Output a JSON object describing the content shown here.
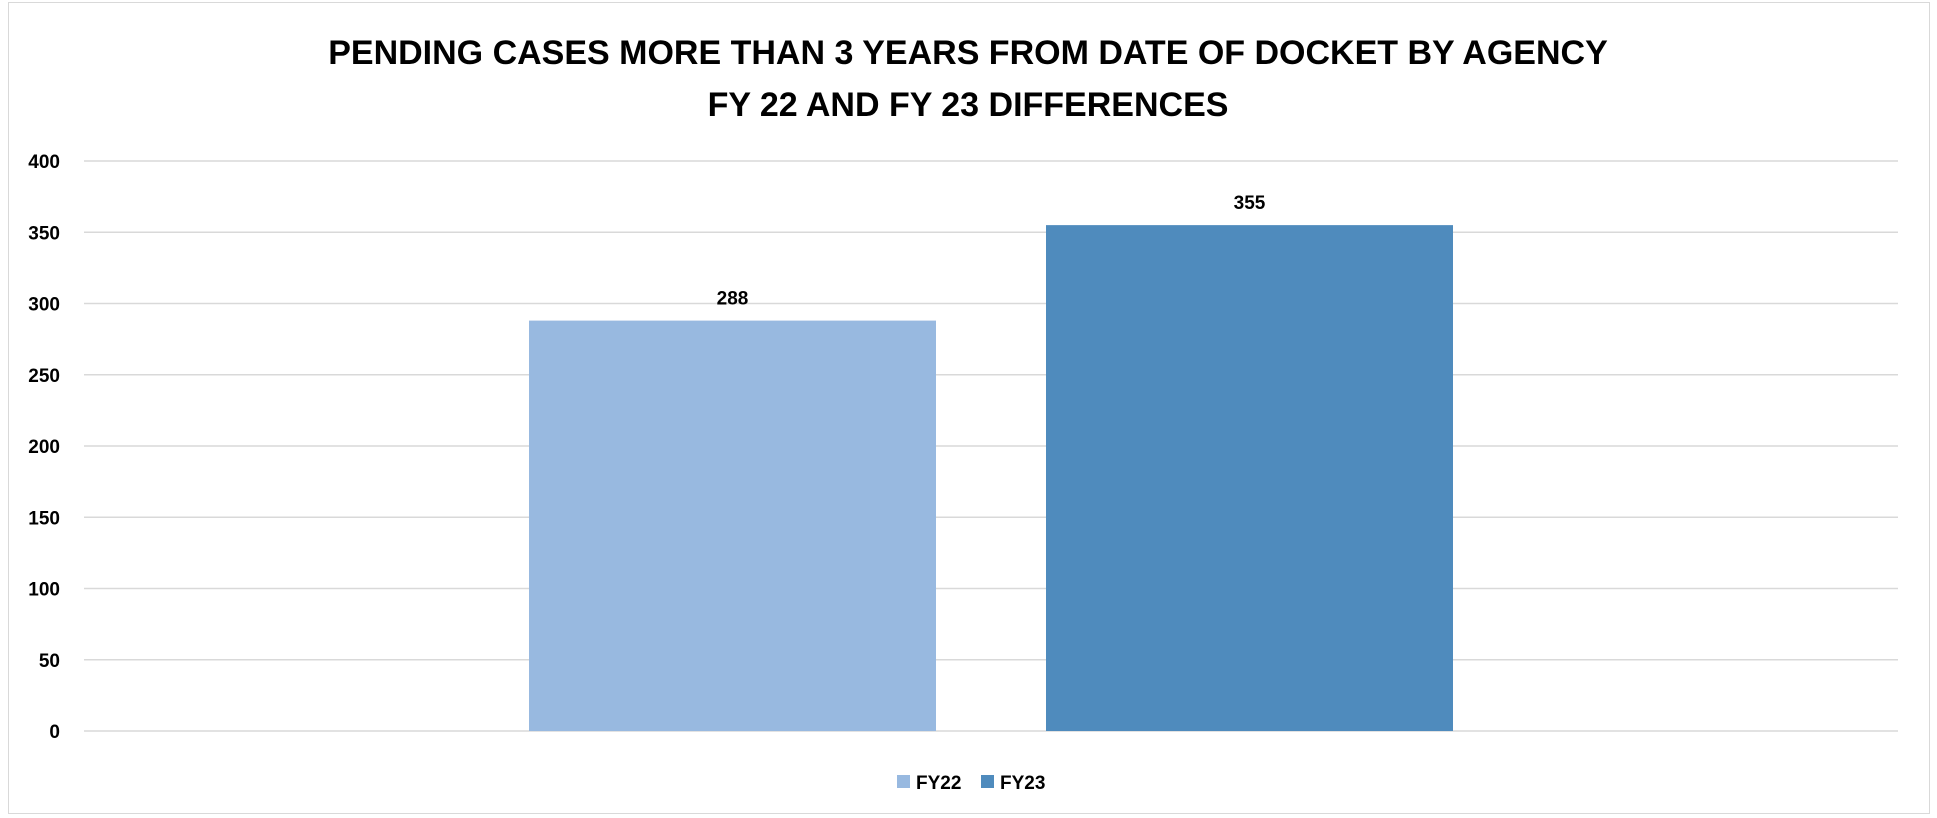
{
  "chart_data": {
    "type": "bar",
    "title_lines": [
      "PENDING CASES MORE THAN 3 YEARS FROM DATE OF DOCKET BY AGENCY",
      "FY 22 AND FY 23 DIFFERENCES"
    ],
    "categories": [
      ""
    ],
    "series": [
      {
        "name": "FY22",
        "values": [
          288
        ],
        "color": "#98b9e0"
      },
      {
        "name": "FY23",
        "values": [
          355
        ],
        "color": "#4f8bbd"
      }
    ],
    "ylim": [
      0,
      400
    ],
    "yticks": [
      "0",
      "50",
      "100",
      "150",
      "200",
      "250",
      "300",
      "350",
      "400"
    ],
    "data_labels": [
      "288",
      "355"
    ],
    "grid": true,
    "legend_position": "bottom-center",
    "xlabel": "",
    "ylabel": ""
  }
}
